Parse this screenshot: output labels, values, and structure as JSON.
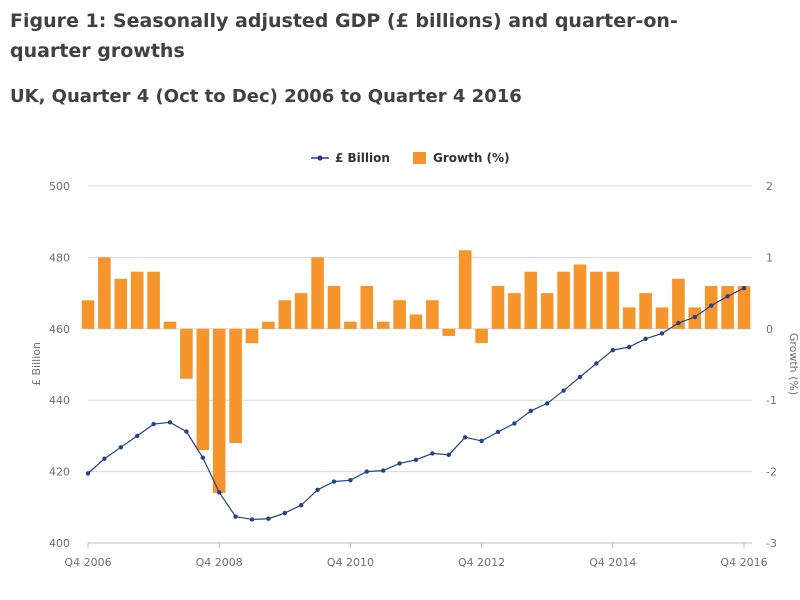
{
  "page": {
    "title": "Figure 1: Seasonally adjusted GDP (£ billions) and quarter-on-quarter growths",
    "subtitle": "UK, Quarter 4 (Oct to Dec) 2006 to Quarter 4 2016"
  },
  "colors": {
    "line": "#27408b",
    "bar": "#f5952b",
    "grid": "#d9d9d9",
    "axis": "#bdbdbd"
  },
  "chart_data": {
    "type": "bar+line",
    "title": "Figure 1: Seasonally adjusted GDP (£ billions) and quarter-on-quarter growths",
    "subtitle": "UK, Quarter 4 (Oct to Dec) 2006 to Quarter 4 2016",
    "legend_position": "top-center",
    "legend": [
      "£ Billion",
      "Growth (%)"
    ],
    "x_ticks": [
      "Q4 2006",
      "Q4 2008",
      "Q4 2010",
      "Q4 2012",
      "Q4 2014",
      "Q4 2016"
    ],
    "y_left": {
      "label": "£ Billion",
      "lim": [
        400,
        500
      ],
      "ticks": [
        "400",
        "420",
        "440",
        "460",
        "480",
        "500"
      ]
    },
    "y_right": {
      "label": "Growth (%)",
      "lim": [
        -3,
        2
      ],
      "ticks": [
        "-3",
        "-2",
        "-1",
        "0",
        "1",
        "2"
      ]
    },
    "grid": true,
    "quarters": [
      "Q4 2006",
      "Q1 2007",
      "Q2 2007",
      "Q3 2007",
      "Q4 2007",
      "Q1 2008",
      "Q2 2008",
      "Q3 2008",
      "Q4 2008",
      "Q1 2009",
      "Q2 2009",
      "Q3 2009",
      "Q4 2009",
      "Q1 2010",
      "Q2 2010",
      "Q3 2010",
      "Q4 2010",
      "Q1 2011",
      "Q2 2011",
      "Q3 2011",
      "Q4 2011",
      "Q1 2012",
      "Q2 2012",
      "Q3 2012",
      "Q4 2012",
      "Q1 2013",
      "Q2 2013",
      "Q3 2013",
      "Q4 2013",
      "Q1 2014",
      "Q2 2014",
      "Q3 2014",
      "Q4 2014",
      "Q1 2015",
      "Q2 2015",
      "Q3 2015",
      "Q4 2015",
      "Q1 2016",
      "Q2 2016",
      "Q3 2016",
      "Q4 2016"
    ],
    "series": [
      {
        "name": "Growth (%)",
        "axis": "right",
        "kind": "bar",
        "values": [
          0.4,
          1.0,
          0.7,
          0.8,
          0.8,
          0.1,
          -0.7,
          -1.7,
          -2.3,
          -1.6,
          -0.2,
          0.1,
          0.4,
          0.5,
          1.0,
          0.6,
          0.1,
          0.6,
          0.1,
          0.4,
          0.2,
          0.4,
          -0.1,
          1.1,
          -0.2,
          0.6,
          0.5,
          0.8,
          0.5,
          0.8,
          0.9,
          0.8,
          0.8,
          0.3,
          0.5,
          0.3,
          0.7,
          0.3,
          0.6,
          0.6,
          0.6
        ]
      },
      {
        "name": "£ Billion",
        "axis": "left",
        "kind": "line",
        "values": [
          419.5,
          423.6,
          426.8,
          430.0,
          433.3,
          433.8,
          431.2,
          423.9,
          414.2,
          407.4,
          406.6,
          406.8,
          408.4,
          410.6,
          414.9,
          417.2,
          417.6,
          420.0,
          420.3,
          422.3,
          423.3,
          425.1,
          424.7,
          429.6,
          428.6,
          431.1,
          433.5,
          437.0,
          439.1,
          442.7,
          446.5,
          450.3,
          454.0,
          454.9,
          457.2,
          458.7,
          461.6,
          463.3,
          466.5,
          469.1,
          471.4
        ]
      }
    ]
  }
}
